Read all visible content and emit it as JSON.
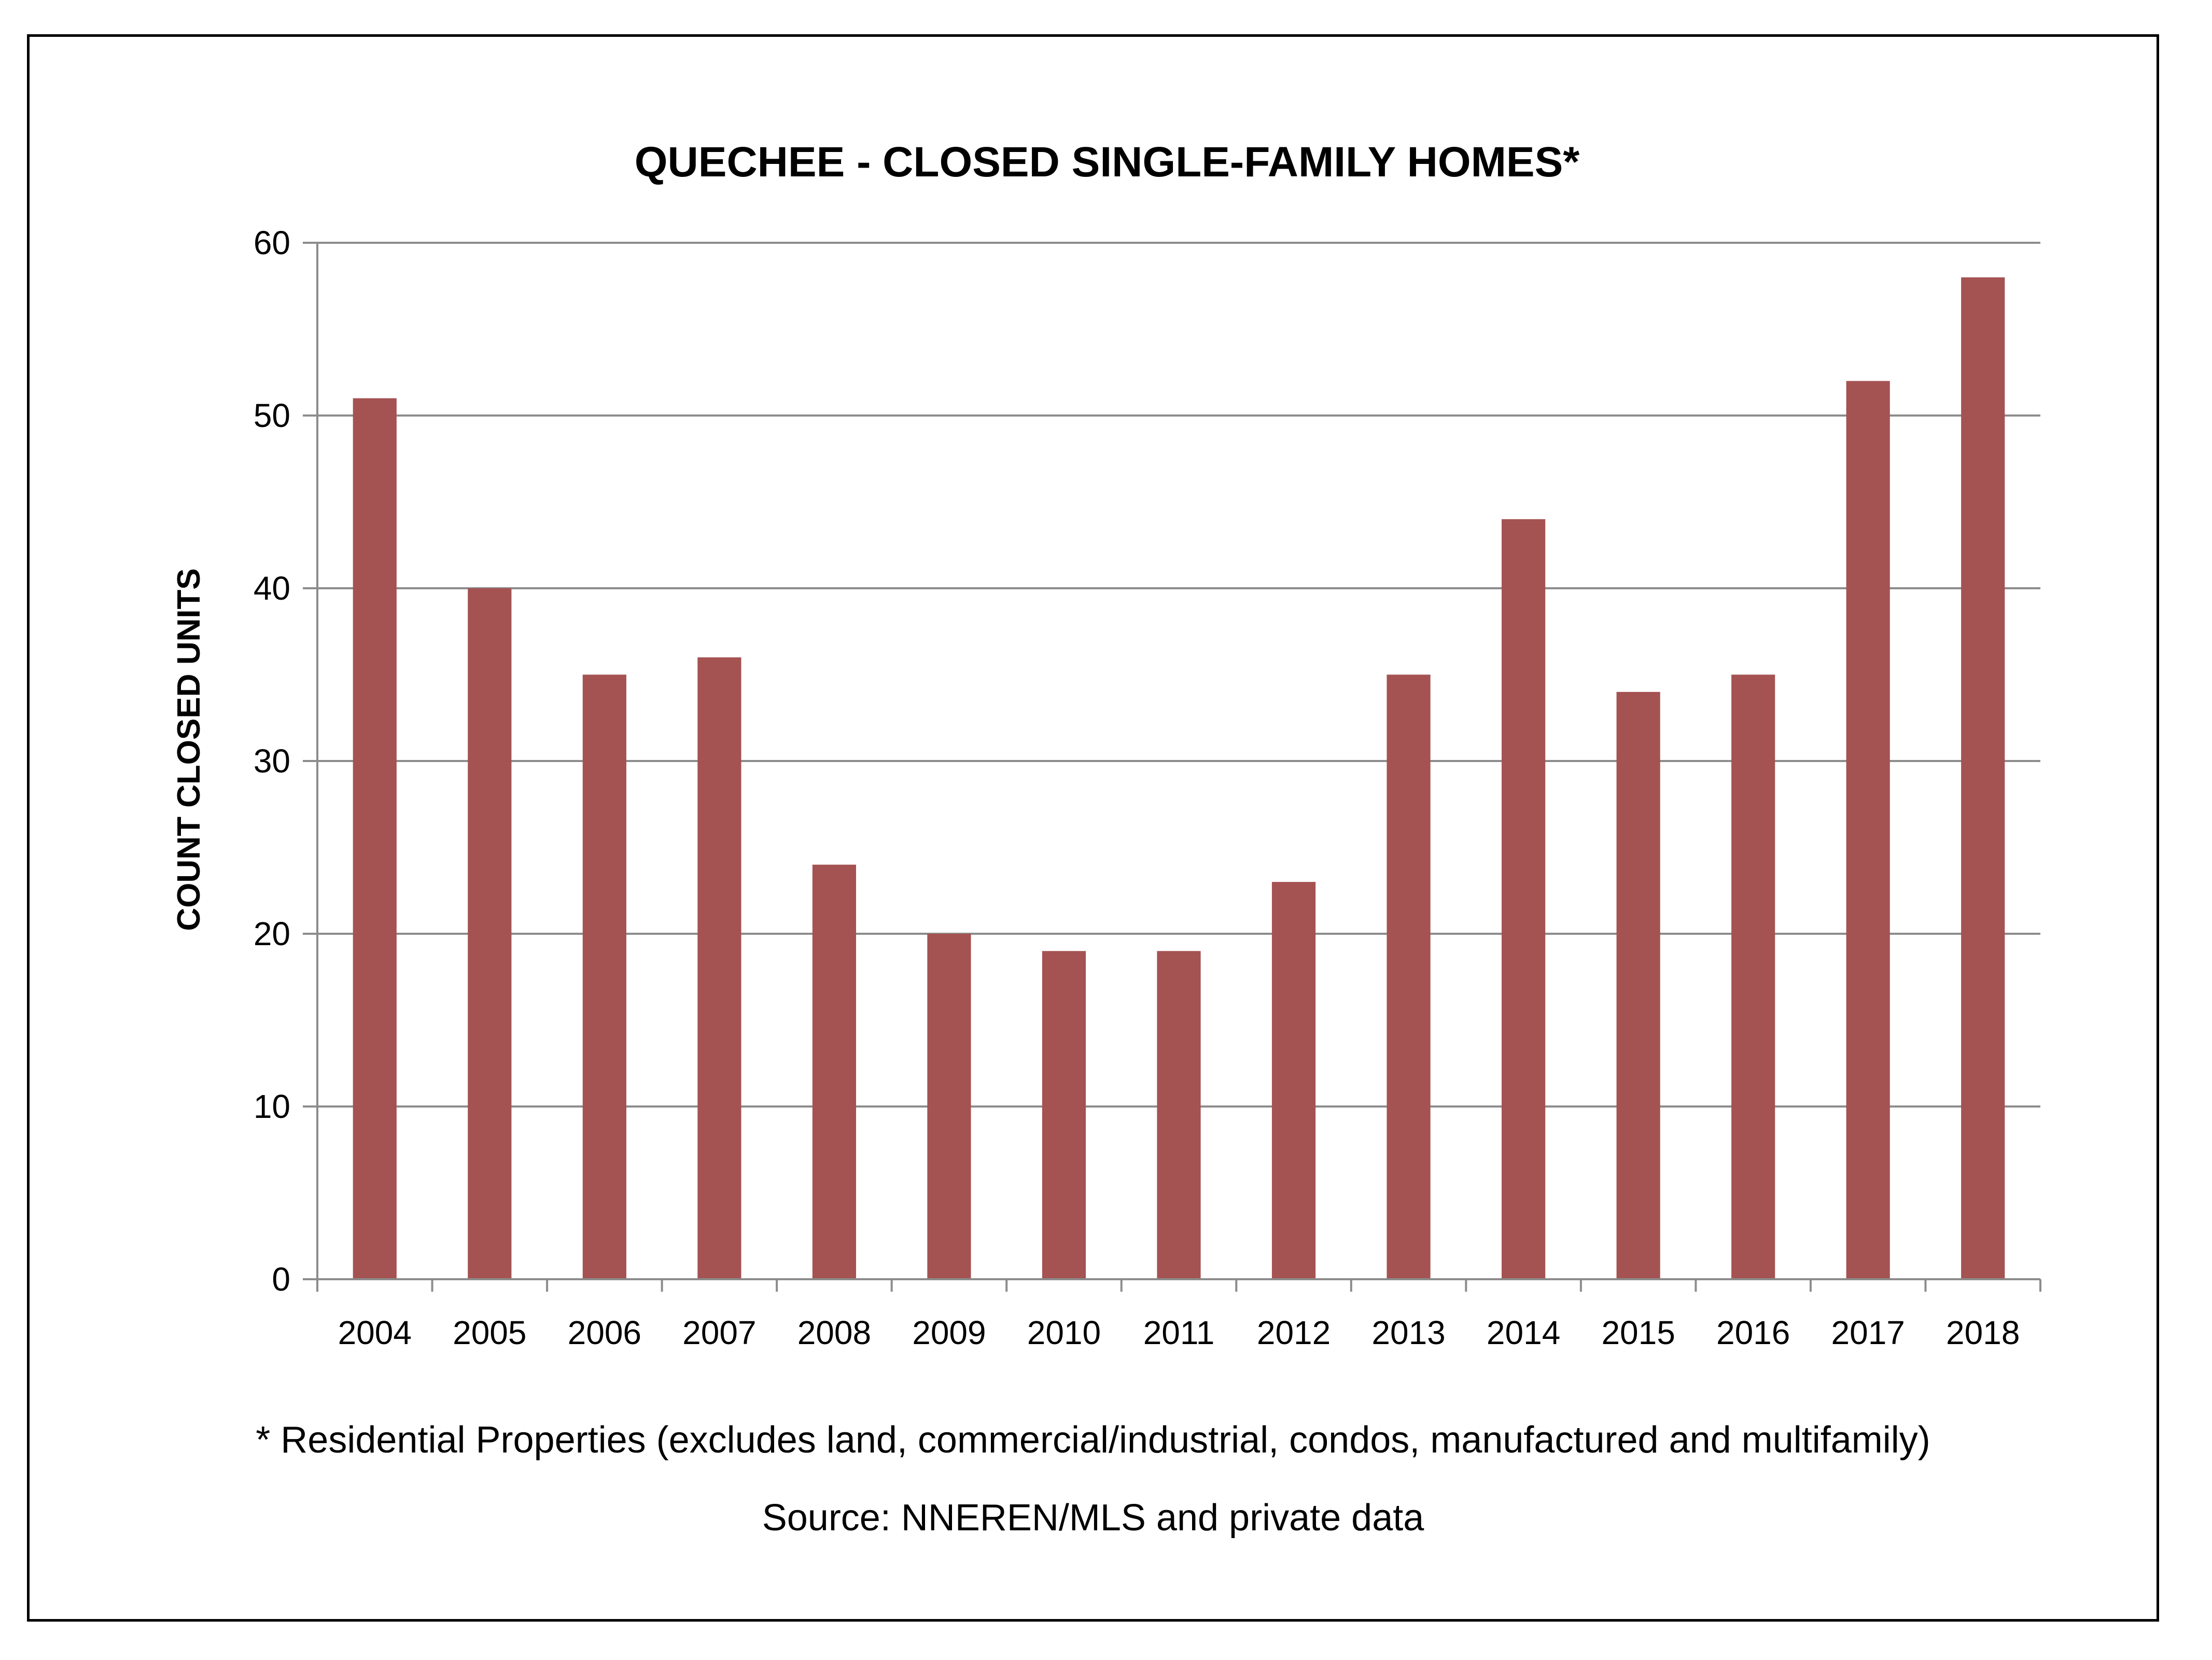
{
  "chart_data": {
    "type": "bar",
    "title": "QUECHEE - CLOSED SINGLE-FAMILY HOMES*",
    "xlabel": "",
    "ylabel": "COUNT CLOSED UNITS",
    "categories": [
      "2004",
      "2005",
      "2006",
      "2007",
      "2008",
      "2009",
      "2010",
      "2011",
      "2012",
      "2013",
      "2014",
      "2015",
      "2016",
      "2017",
      "2018"
    ],
    "values": [
      51,
      40,
      35,
      36,
      24,
      20,
      19,
      19,
      23,
      35,
      44,
      34,
      35,
      52,
      58
    ],
    "ylim": [
      0,
      60
    ],
    "yticks": [
      "0",
      "10",
      "20",
      "30",
      "40",
      "50",
      "60"
    ],
    "grid": true,
    "legend": "none",
    "bar_color": "#A55252"
  },
  "notes": {
    "footnote": "* Residential Properties (excludes land, commercial/industrial, condos, manufactured and multifamily)",
    "source": "Source: NNEREN/MLS and private data"
  }
}
